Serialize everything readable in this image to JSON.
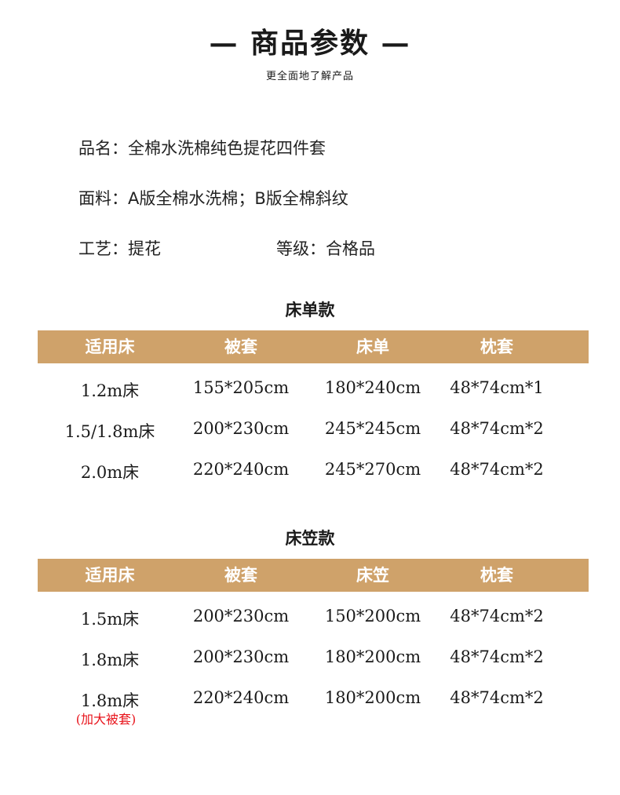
{
  "header": {
    "title": "— 商品参数 —",
    "subtitle": "更全面地了解产品"
  },
  "info": {
    "name": "品名：全棉水洗棉纯色提花四件套",
    "fabric": "面料：A版全棉水洗棉；B版全棉斜纹",
    "craft": "工艺：提花",
    "grade": "等级：合格品"
  },
  "colors": {
    "header_bar": "#cfa26a",
    "note": "#e8141c"
  },
  "table1": {
    "title": "床单款",
    "headers": [
      "适用床",
      "被套",
      "床单",
      "枕套"
    ],
    "rows": [
      [
        "1.2m床",
        "155*205cm",
        "180*240cm",
        "48*74cm*1"
      ],
      [
        "1.5/1.8m床",
        "200*230cm",
        "245*245cm",
        "48*74cm*2"
      ],
      [
        "2.0m床",
        "220*240cm",
        "245*270cm",
        "48*74cm*2"
      ]
    ]
  },
  "table2": {
    "title": "床笠款",
    "headers": [
      "适用床",
      "被套",
      "床笠",
      "枕套"
    ],
    "rows": [
      [
        "1.5m床",
        "200*230cm",
        "150*200cm",
        "48*74cm*2"
      ],
      [
        "1.8m床",
        "200*230cm",
        "180*200cm",
        "48*74cm*2"
      ],
      [
        "1.8m床",
        "220*240cm",
        "180*200cm",
        "48*74cm*2"
      ]
    ],
    "note": "(加大被套)"
  }
}
